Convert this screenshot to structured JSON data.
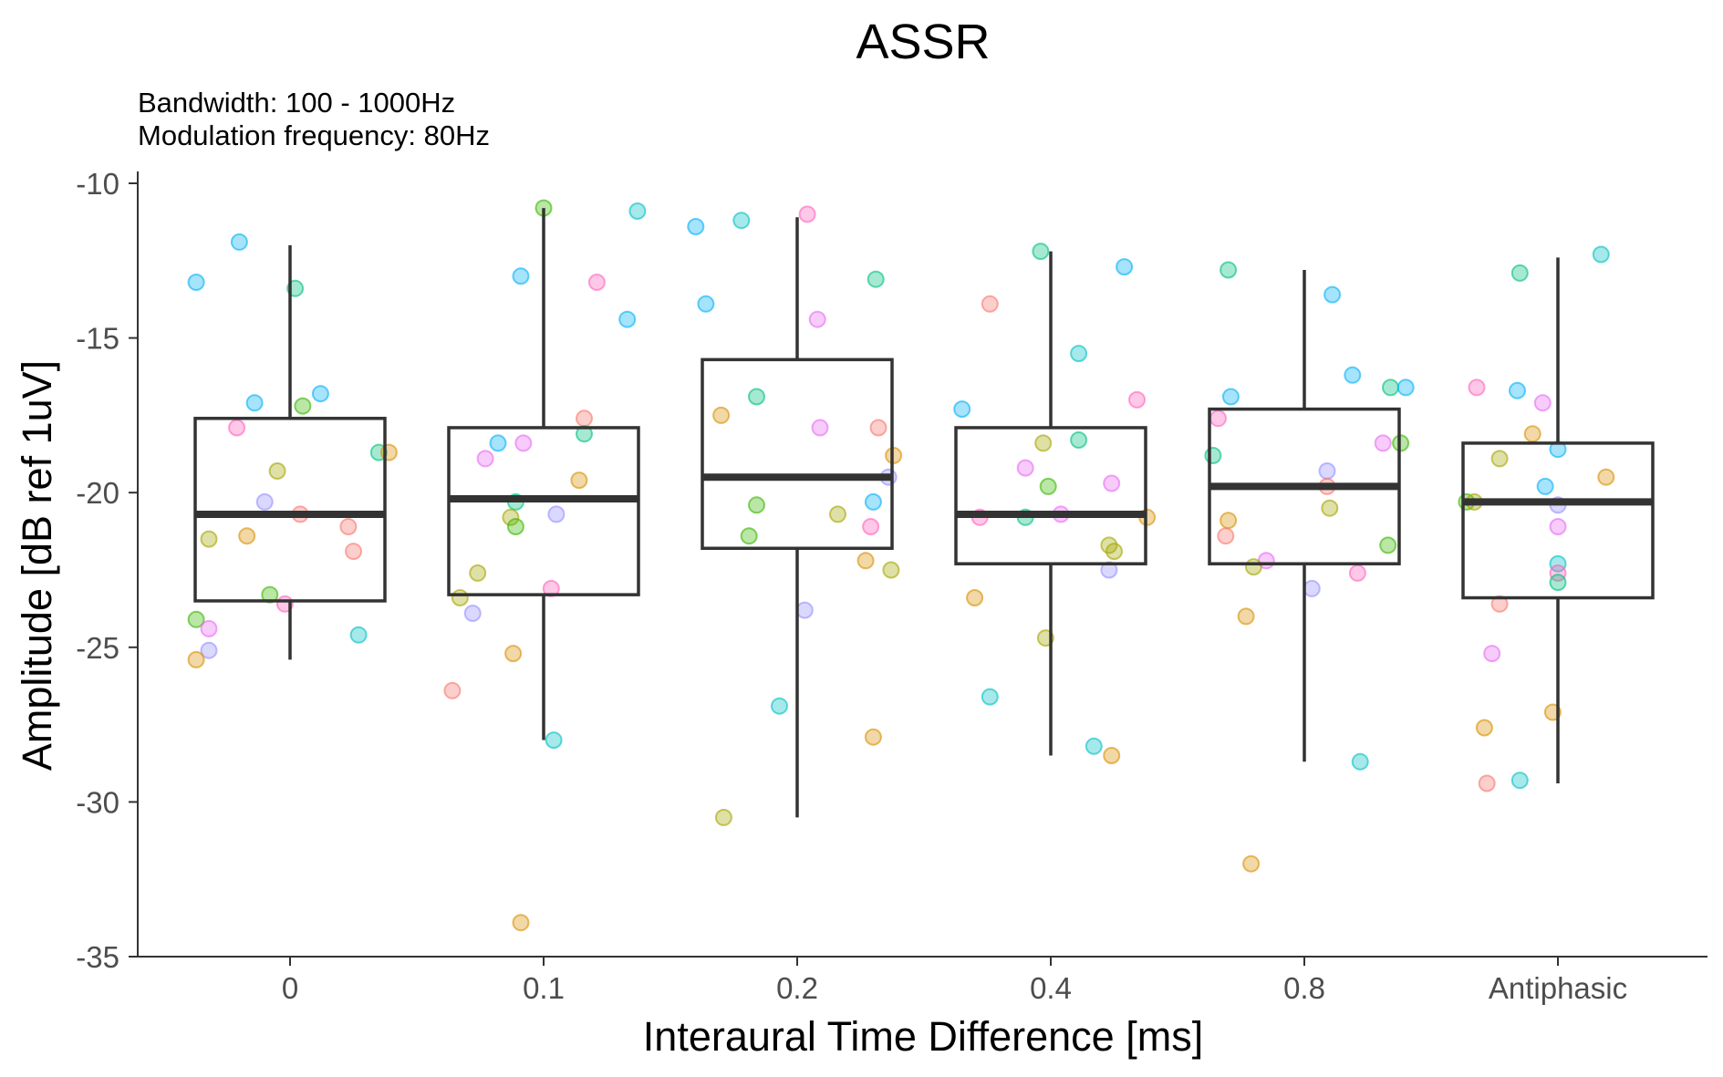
{
  "chart_data": {
    "type": "boxplot",
    "title": "ASSR",
    "subtitle_lines": [
      "Bandwidth: 100 - 1000Hz",
      "Modulation frequency: 80Hz"
    ],
    "xlabel": "Interaural Time Difference [ms]",
    "ylabel": "Amplitude [dB ref 1uV]",
    "categories": [
      "0",
      "0.1",
      "0.2",
      "0.4",
      "0.8",
      "Antiphasic"
    ],
    "ylim": [
      -35,
      -10
    ],
    "yticks": [
      -10,
      -15,
      -20,
      -25,
      -30,
      -35
    ],
    "ytick_labels": [
      "-10",
      "-15",
      "-20",
      "-25",
      "-30",
      "-35"
    ],
    "grid": false,
    "legend": "none",
    "colors": {
      "box_stroke": "#333333",
      "axis": "#333333",
      "tick_text": "#4d4d4d",
      "palette": [
        "#F8766D",
        "#D89000",
        "#A3A500",
        "#39B600",
        "#00BF7D",
        "#00BFC4",
        "#00B0F6",
        "#9590FF",
        "#E76BF3",
        "#FF62BC"
      ]
    },
    "boxes": [
      {
        "category": "0",
        "whisker_low": -25.4,
        "q1": -23.5,
        "median": -20.7,
        "q3": -17.6,
        "whisker_high": -12.0
      },
      {
        "category": "0.1",
        "whisker_low": -28.0,
        "q1": -23.3,
        "median": -20.2,
        "q3": -17.9,
        "whisker_high": -10.8
      },
      {
        "category": "0.2",
        "whisker_low": -30.5,
        "q1": -21.8,
        "median": -19.5,
        "q3": -15.7,
        "whisker_high": -11.1
      },
      {
        "category": "0.4",
        "whisker_low": -28.5,
        "q1": -22.3,
        "median": -20.7,
        "q3": -17.9,
        "whisker_high": -12.2
      },
      {
        "category": "0.8",
        "whisker_low": -28.7,
        "q1": -22.3,
        "median": -19.8,
        "q3": -17.3,
        "whisker_high": -12.8
      },
      {
        "category": "Antiphasic",
        "whisker_low": -29.4,
        "q1": -23.4,
        "median": -20.3,
        "q3": -18.4,
        "whisker_high": -12.4
      }
    ],
    "points": [
      {
        "category": "0",
        "jitter": -0.37,
        "y": -13.2,
        "color": 6
      },
      {
        "category": "0",
        "jitter": -0.2,
        "y": -11.9,
        "color": 6
      },
      {
        "category": "0",
        "jitter": 0.02,
        "y": -13.4,
        "color": 4
      },
      {
        "category": "0",
        "jitter": -0.14,
        "y": -17.1,
        "color": 6
      },
      {
        "category": "0",
        "jitter": 0.12,
        "y": -16.8,
        "color": 6
      },
      {
        "category": "0",
        "jitter": 0.05,
        "y": -17.2,
        "color": 3
      },
      {
        "category": "0",
        "jitter": -0.21,
        "y": -17.9,
        "color": 9
      },
      {
        "category": "0",
        "jitter": 0.35,
        "y": -18.7,
        "color": 4
      },
      {
        "category": "0",
        "jitter": 0.39,
        "y": -18.7,
        "color": 1
      },
      {
        "category": "0",
        "jitter": -0.05,
        "y": -19.3,
        "color": 2
      },
      {
        "category": "0",
        "jitter": -0.1,
        "y": -20.3,
        "color": 7
      },
      {
        "category": "0",
        "jitter": 0.04,
        "y": -20.7,
        "color": 0
      },
      {
        "category": "0",
        "jitter": 0.23,
        "y": -21.1,
        "color": 0
      },
      {
        "category": "0",
        "jitter": -0.17,
        "y": -21.4,
        "color": 1
      },
      {
        "category": "0",
        "jitter": -0.32,
        "y": -21.5,
        "color": 2
      },
      {
        "category": "0",
        "jitter": 0.25,
        "y": -21.9,
        "color": 0
      },
      {
        "category": "0",
        "jitter": -0.08,
        "y": -23.3,
        "color": 3
      },
      {
        "category": "0",
        "jitter": -0.02,
        "y": -23.6,
        "color": 9
      },
      {
        "category": "0",
        "jitter": -0.37,
        "y": -24.1,
        "color": 3
      },
      {
        "category": "0",
        "jitter": -0.32,
        "y": -24.4,
        "color": 8
      },
      {
        "category": "0",
        "jitter": 0.27,
        "y": -24.6,
        "color": 5
      },
      {
        "category": "0",
        "jitter": -0.32,
        "y": -25.1,
        "color": 7
      },
      {
        "category": "0",
        "jitter": -0.37,
        "y": -25.4,
        "color": 1
      },
      {
        "category": "0.1",
        "jitter": 0.0,
        "y": -10.8,
        "color": 3
      },
      {
        "category": "0.1",
        "jitter": -0.09,
        "y": -13.0,
        "color": 6
      },
      {
        "category": "0.1",
        "jitter": 0.21,
        "y": -13.2,
        "color": 9
      },
      {
        "category": "0.1",
        "jitter": 0.33,
        "y": -14.4,
        "color": 6
      },
      {
        "category": "0.1",
        "jitter": 0.37,
        "y": -10.9,
        "color": 5
      },
      {
        "category": "0.1",
        "jitter": 0.16,
        "y": -17.6,
        "color": 0
      },
      {
        "category": "0.1",
        "jitter": 0.16,
        "y": -18.1,
        "color": 4
      },
      {
        "category": "0.1",
        "jitter": -0.18,
        "y": -18.4,
        "color": 6
      },
      {
        "category": "0.1",
        "jitter": -0.08,
        "y": -18.4,
        "color": 8
      },
      {
        "category": "0.1",
        "jitter": -0.23,
        "y": -18.9,
        "color": 8
      },
      {
        "category": "0.1",
        "jitter": 0.14,
        "y": -19.6,
        "color": 1
      },
      {
        "category": "0.1",
        "jitter": -0.11,
        "y": -20.3,
        "color": 4
      },
      {
        "category": "0.1",
        "jitter": 0.05,
        "y": -20.7,
        "color": 7
      },
      {
        "category": "0.1",
        "jitter": -0.13,
        "y": -20.8,
        "color": 2
      },
      {
        "category": "0.1",
        "jitter": -0.11,
        "y": -21.1,
        "color": 3
      },
      {
        "category": "0.1",
        "jitter": -0.26,
        "y": -22.6,
        "color": 2
      },
      {
        "category": "0.1",
        "jitter": 0.03,
        "y": -23.1,
        "color": 9
      },
      {
        "category": "0.1",
        "jitter": -0.33,
        "y": -23.4,
        "color": 2
      },
      {
        "category": "0.1",
        "jitter": -0.28,
        "y": -23.9,
        "color": 7
      },
      {
        "category": "0.1",
        "jitter": -0.12,
        "y": -25.2,
        "color": 1
      },
      {
        "category": "0.1",
        "jitter": -0.36,
        "y": -26.4,
        "color": 0
      },
      {
        "category": "0.1",
        "jitter": 0.04,
        "y": -28.0,
        "color": 5
      },
      {
        "category": "0.1",
        "jitter": -0.09,
        "y": -33.9,
        "color": 1
      },
      {
        "category": "0.2",
        "jitter": 0.04,
        "y": -11.0,
        "color": 9
      },
      {
        "category": "0.2",
        "jitter": -0.22,
        "y": -11.2,
        "color": 5
      },
      {
        "category": "0.2",
        "jitter": -0.4,
        "y": -11.4,
        "color": 6
      },
      {
        "category": "0.2",
        "jitter": 0.31,
        "y": -13.1,
        "color": 4
      },
      {
        "category": "0.2",
        "jitter": -0.36,
        "y": -13.9,
        "color": 6
      },
      {
        "category": "0.2",
        "jitter": 0.08,
        "y": -14.4,
        "color": 8
      },
      {
        "category": "0.2",
        "jitter": -0.16,
        "y": -16.9,
        "color": 4
      },
      {
        "category": "0.2",
        "jitter": -0.3,
        "y": -17.5,
        "color": 1
      },
      {
        "category": "0.2",
        "jitter": 0.09,
        "y": -17.9,
        "color": 8
      },
      {
        "category": "0.2",
        "jitter": 0.32,
        "y": -17.9,
        "color": 0
      },
      {
        "category": "0.2",
        "jitter": 0.38,
        "y": -18.8,
        "color": 1
      },
      {
        "category": "0.2",
        "jitter": 0.36,
        "y": -19.5,
        "color": 7
      },
      {
        "category": "0.2",
        "jitter": 0.3,
        "y": -20.3,
        "color": 6
      },
      {
        "category": "0.2",
        "jitter": -0.16,
        "y": -20.4,
        "color": 3
      },
      {
        "category": "0.2",
        "jitter": 0.16,
        "y": -20.7,
        "color": 2
      },
      {
        "category": "0.2",
        "jitter": 0.29,
        "y": -21.1,
        "color": 9
      },
      {
        "category": "0.2",
        "jitter": -0.19,
        "y": -21.4,
        "color": 3
      },
      {
        "category": "0.2",
        "jitter": 0.27,
        "y": -22.2,
        "color": 1
      },
      {
        "category": "0.2",
        "jitter": 0.37,
        "y": -22.5,
        "color": 2
      },
      {
        "category": "0.2",
        "jitter": 0.03,
        "y": -23.8,
        "color": 7
      },
      {
        "category": "0.2",
        "jitter": -0.07,
        "y": -26.9,
        "color": 5
      },
      {
        "category": "0.2",
        "jitter": 0.3,
        "y": -27.9,
        "color": 1
      },
      {
        "category": "0.2",
        "jitter": -0.29,
        "y": -30.5,
        "color": 2
      },
      {
        "category": "0.4",
        "jitter": -0.04,
        "y": -12.2,
        "color": 4
      },
      {
        "category": "0.4",
        "jitter": 0.29,
        "y": -12.7,
        "color": 6
      },
      {
        "category": "0.4",
        "jitter": -0.24,
        "y": -13.9,
        "color": 0
      },
      {
        "category": "0.4",
        "jitter": 0.11,
        "y": -15.5,
        "color": 5
      },
      {
        "category": "0.4",
        "jitter": 0.34,
        "y": -17.0,
        "color": 9
      },
      {
        "category": "0.4",
        "jitter": -0.35,
        "y": -17.3,
        "color": 6
      },
      {
        "category": "0.4",
        "jitter": -0.03,
        "y": -18.4,
        "color": 2
      },
      {
        "category": "0.4",
        "jitter": 0.11,
        "y": -18.3,
        "color": 4
      },
      {
        "category": "0.4",
        "jitter": -0.1,
        "y": -19.2,
        "color": 8
      },
      {
        "category": "0.4",
        "jitter": -0.01,
        "y": -19.8,
        "color": 3
      },
      {
        "category": "0.4",
        "jitter": 0.24,
        "y": -19.7,
        "color": 8
      },
      {
        "category": "0.4",
        "jitter": -0.28,
        "y": -20.8,
        "color": 9
      },
      {
        "category": "0.4",
        "jitter": -0.1,
        "y": -20.8,
        "color": 4
      },
      {
        "category": "0.4",
        "jitter": 0.04,
        "y": -20.7,
        "color": 8
      },
      {
        "category": "0.4",
        "jitter": 0.38,
        "y": -20.8,
        "color": 1
      },
      {
        "category": "0.4",
        "jitter": 0.23,
        "y": -21.7,
        "color": 2
      },
      {
        "category": "0.4",
        "jitter": 0.25,
        "y": -21.9,
        "color": 2
      },
      {
        "category": "0.4",
        "jitter": 0.23,
        "y": -22.5,
        "color": 7
      },
      {
        "category": "0.4",
        "jitter": -0.3,
        "y": -23.4,
        "color": 1
      },
      {
        "category": "0.4",
        "jitter": -0.02,
        "y": -24.7,
        "color": 2
      },
      {
        "category": "0.4",
        "jitter": -0.24,
        "y": -26.6,
        "color": 5
      },
      {
        "category": "0.4",
        "jitter": 0.17,
        "y": -28.2,
        "color": 5
      },
      {
        "category": "0.4",
        "jitter": 0.24,
        "y": -28.5,
        "color": 1
      },
      {
        "category": "0.8",
        "jitter": -0.3,
        "y": -12.8,
        "color": 4
      },
      {
        "category": "0.8",
        "jitter": 0.11,
        "y": -13.6,
        "color": 6
      },
      {
        "category": "0.8",
        "jitter": 0.19,
        "y": -16.2,
        "color": 6
      },
      {
        "category": "0.8",
        "jitter": 0.34,
        "y": -16.6,
        "color": 4
      },
      {
        "category": "0.8",
        "jitter": 0.4,
        "y": -16.6,
        "color": 6
      },
      {
        "category": "0.8",
        "jitter": -0.29,
        "y": -16.9,
        "color": 6
      },
      {
        "category": "0.8",
        "jitter": -0.34,
        "y": -17.6,
        "color": 9
      },
      {
        "category": "0.8",
        "jitter": -0.36,
        "y": -18.8,
        "color": 4
      },
      {
        "category": "0.8",
        "jitter": 0.31,
        "y": -18.4,
        "color": 8
      },
      {
        "category": "0.8",
        "jitter": 0.38,
        "y": -18.4,
        "color": 3
      },
      {
        "category": "0.8",
        "jitter": 0.09,
        "y": -19.3,
        "color": 7
      },
      {
        "category": "0.8",
        "jitter": 0.09,
        "y": -19.8,
        "color": 0
      },
      {
        "category": "0.8",
        "jitter": 0.1,
        "y": -20.5,
        "color": 2
      },
      {
        "category": "0.8",
        "jitter": -0.3,
        "y": -20.9,
        "color": 1
      },
      {
        "category": "0.8",
        "jitter": -0.31,
        "y": -21.4,
        "color": 0
      },
      {
        "category": "0.8",
        "jitter": 0.33,
        "y": -21.7,
        "color": 3
      },
      {
        "category": "0.8",
        "jitter": -0.15,
        "y": -22.2,
        "color": 8
      },
      {
        "category": "0.8",
        "jitter": -0.2,
        "y": -22.4,
        "color": 2
      },
      {
        "category": "0.8",
        "jitter": 0.21,
        "y": -22.6,
        "color": 9
      },
      {
        "category": "0.8",
        "jitter": 0.03,
        "y": -23.1,
        "color": 7
      },
      {
        "category": "0.8",
        "jitter": -0.23,
        "y": -24.0,
        "color": 1
      },
      {
        "category": "0.8",
        "jitter": 0.22,
        "y": -28.7,
        "color": 5
      },
      {
        "category": "0.8",
        "jitter": -0.21,
        "y": -32.0,
        "color": 1
      },
      {
        "category": "Antiphasic",
        "jitter": -0.15,
        "y": -12.9,
        "color": 4
      },
      {
        "category": "Antiphasic",
        "jitter": 0.17,
        "y": -12.3,
        "color": 5
      },
      {
        "category": "Antiphasic",
        "jitter": -0.32,
        "y": -16.6,
        "color": 9
      },
      {
        "category": "Antiphasic",
        "jitter": -0.16,
        "y": -16.7,
        "color": 6
      },
      {
        "category": "Antiphasic",
        "jitter": -0.06,
        "y": -17.1,
        "color": 8
      },
      {
        "category": "Antiphasic",
        "jitter": -0.1,
        "y": -18.1,
        "color": 1
      },
      {
        "category": "Antiphasic",
        "jitter": -0.23,
        "y": -18.9,
        "color": 2
      },
      {
        "category": "Antiphasic",
        "jitter": 0.0,
        "y": -18.6,
        "color": 6
      },
      {
        "category": "Antiphasic",
        "jitter": 0.19,
        "y": -19.5,
        "color": 1
      },
      {
        "category": "Antiphasic",
        "jitter": -0.05,
        "y": -19.8,
        "color": 6
      },
      {
        "category": "Antiphasic",
        "jitter": -0.36,
        "y": -20.3,
        "color": 3
      },
      {
        "category": "Antiphasic",
        "jitter": -0.33,
        "y": -20.3,
        "color": 2
      },
      {
        "category": "Antiphasic",
        "jitter": 0.0,
        "y": -20.4,
        "color": 7
      },
      {
        "category": "Antiphasic",
        "jitter": 0.0,
        "y": -21.1,
        "color": 8
      },
      {
        "category": "Antiphasic",
        "jitter": 0.0,
        "y": -22.3,
        "color": 5
      },
      {
        "category": "Antiphasic",
        "jitter": 0.0,
        "y": -22.6,
        "color": 9
      },
      {
        "category": "Antiphasic",
        "jitter": 0.0,
        "y": -22.9,
        "color": 4
      },
      {
        "category": "Antiphasic",
        "jitter": -0.23,
        "y": -23.6,
        "color": 0
      },
      {
        "category": "Antiphasic",
        "jitter": -0.26,
        "y": -25.2,
        "color": 8
      },
      {
        "category": "Antiphasic",
        "jitter": -0.02,
        "y": -27.1,
        "color": 1
      },
      {
        "category": "Antiphasic",
        "jitter": -0.29,
        "y": -27.6,
        "color": 1
      },
      {
        "category": "Antiphasic",
        "jitter": -0.28,
        "y": -29.4,
        "color": 0
      },
      {
        "category": "Antiphasic",
        "jitter": -0.15,
        "y": -29.3,
        "color": 5
      }
    ]
  }
}
